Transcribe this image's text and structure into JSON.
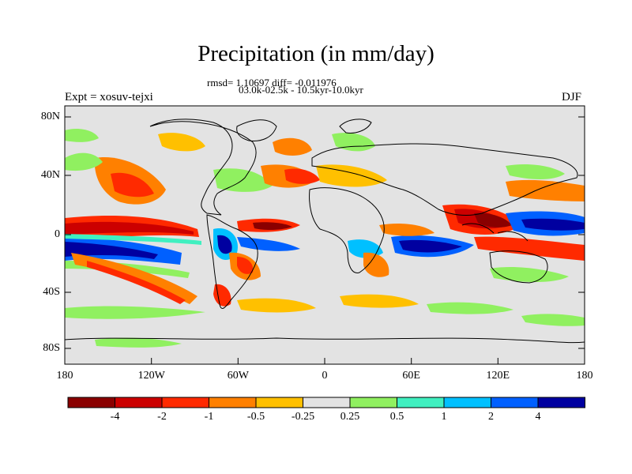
{
  "title": "Precipitation (in mm/day)",
  "stats_line1": "rmsd= 1.10697 diff= -0.011976",
  "stats_line2": "03.0k-02.5k - 10.5kyr-10.0kyr",
  "left_label": "Expt = xosuv-tejxi",
  "right_label": "DJF",
  "y_axis": [
    "80N",
    "40N",
    "0",
    "40S",
    "80S"
  ],
  "x_axis": [
    "180",
    "120W",
    "60W",
    "0",
    "60E",
    "120E",
    "180"
  ],
  "colorbar": {
    "colors": [
      "#8a0000",
      "#cc0000",
      "#ff2a00",
      "#ff8000",
      "#ffc000",
      "#e3e3e3",
      "#90f060",
      "#40f0c0",
      "#00c0ff",
      "#0060ff",
      "#0000a0"
    ],
    "labels": [
      "-4",
      "-2",
      "-1",
      "-0.5",
      "-0.25",
      "0.25",
      "0.5",
      "1",
      "2",
      "4"
    ]
  },
  "colors": {
    "frame": "#000000",
    "land_outline": "#000000",
    "background": "#e3e3e3"
  }
}
